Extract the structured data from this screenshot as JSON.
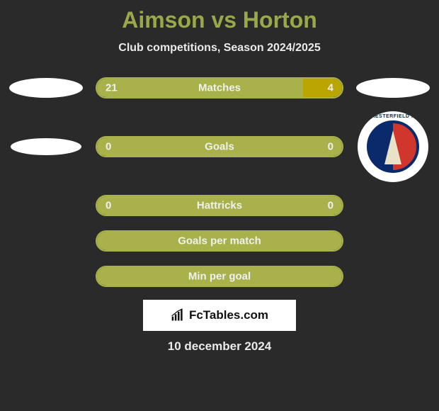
{
  "title": "Aimson vs Horton",
  "subtitle": "Club competitions, Season 2024/2025",
  "title_color": "#9aa84a",
  "subtitle_color": "#eaeaea",
  "background_color": "#2a2a2a",
  "bar_border_color": "#a8b14a",
  "bar_fill_left": "#a8b14a",
  "bar_fill_right": "#bba500",
  "bar_empty_fill": "#a8b14a",
  "text_on_bar_color": "#f0f0f0",
  "rows": [
    {
      "label": "Matches",
      "left_val": "21",
      "right_val": "4",
      "left_pct": 84,
      "right_pct": 16,
      "left_color": "#a8b14a",
      "right_color": "#bba500"
    },
    {
      "label": "Goals",
      "left_val": "0",
      "right_val": "0",
      "left_pct": 50,
      "right_pct": 50,
      "left_color": "#a8b14a",
      "right_color": "#a8b14a"
    },
    {
      "label": "Hattricks",
      "left_val": "0",
      "right_val": "0",
      "left_pct": 50,
      "right_pct": 50,
      "left_color": "#a8b14a",
      "right_color": "#a8b14a"
    },
    {
      "label": "Goals per match",
      "left_val": "",
      "right_val": "",
      "left_pct": 100,
      "right_pct": 0,
      "left_color": "#a8b14a",
      "right_color": "#a8b14a"
    },
    {
      "label": "Min per goal",
      "left_val": "",
      "right_val": "",
      "left_pct": 100,
      "right_pct": 0,
      "left_color": "#a8b14a",
      "right_color": "#a8b14a"
    }
  ],
  "left_side_icons": [
    {
      "shape": "pill-lg"
    },
    {
      "shape": "pill-sm"
    },
    null,
    null,
    null
  ],
  "right_side_icons": [
    {
      "shape": "pill-lg"
    },
    {
      "shape": "crest",
      "top_text": "CHESTERFIELD FC"
    },
    null,
    null,
    null
  ],
  "footer_brand": "FcTables.com",
  "footer_bg": "#ffffff",
  "footer_text_color": "#111111",
  "date_text": "10 december 2024",
  "date_color": "#eaeaea"
}
